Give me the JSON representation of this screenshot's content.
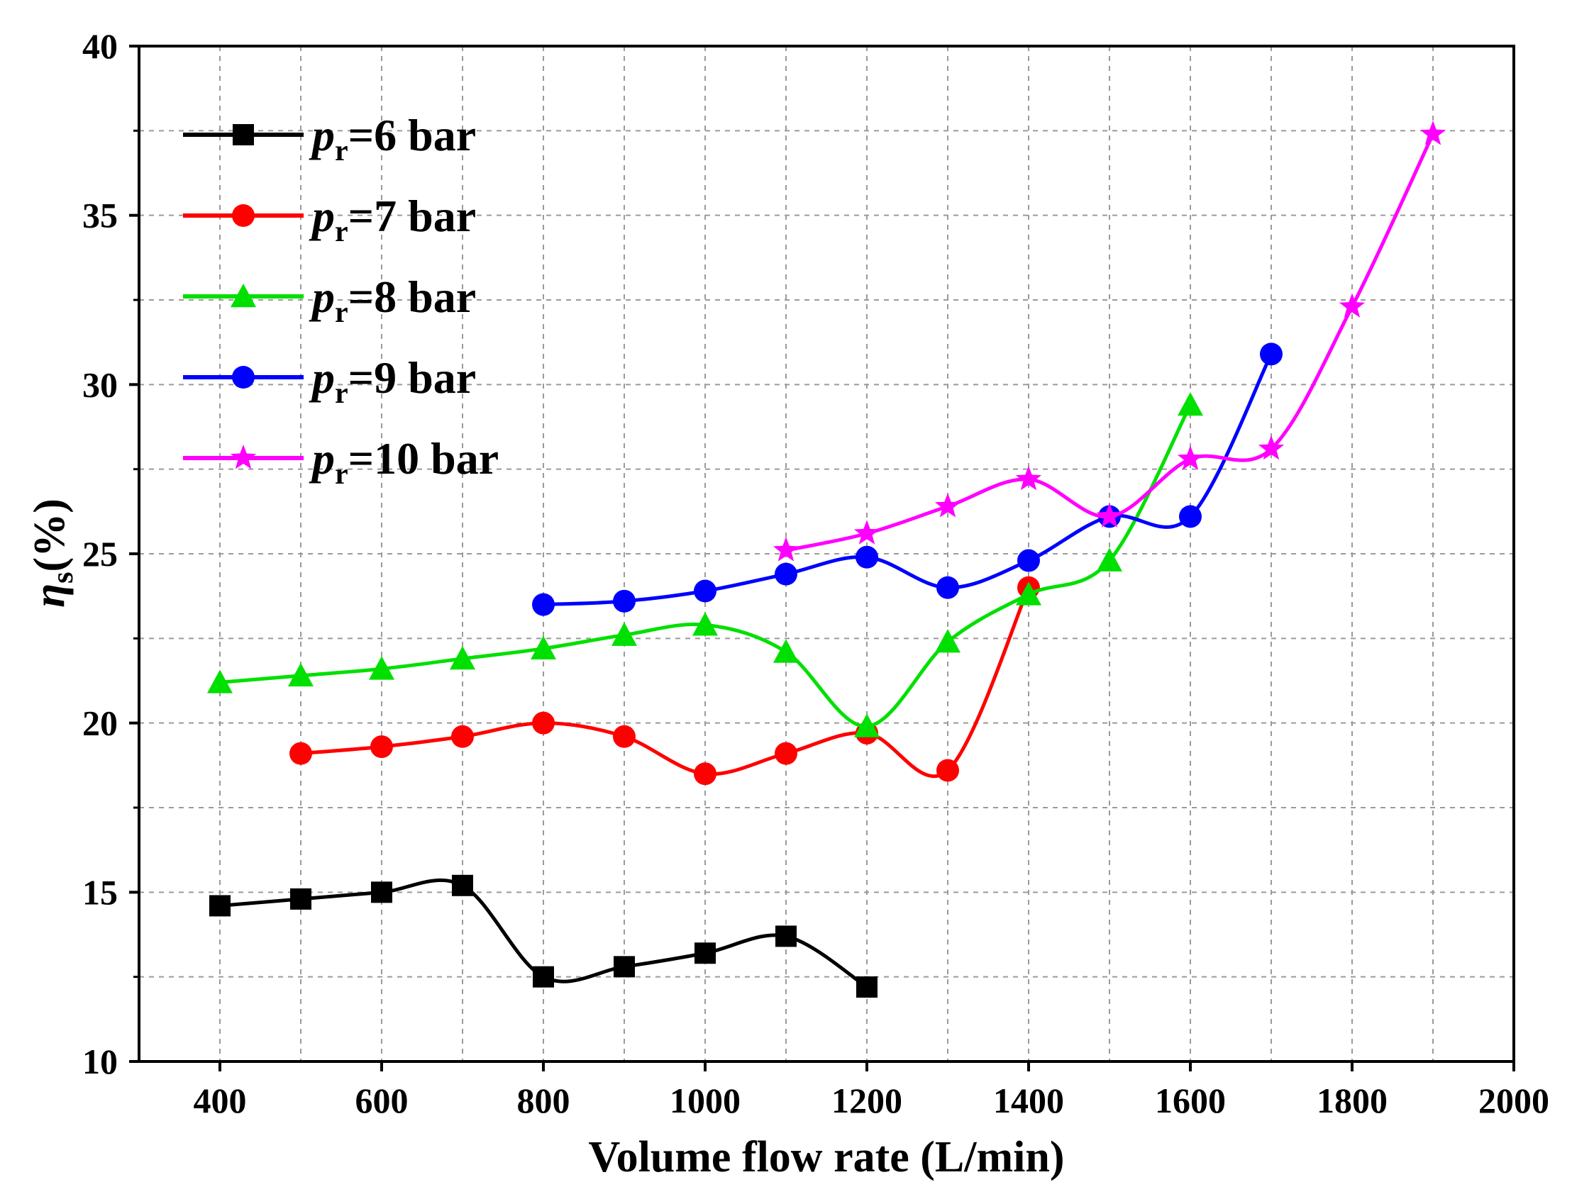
{
  "chart_data": {
    "type": "line",
    "xlabel": "Volume flow rate (L/min)",
    "ylabel_symbol": "η",
    "ylabel_subscript": "s",
    "ylabel_unit": "(%)",
    "xlim": [
      300,
      2000
    ],
    "ylim": [
      10,
      40
    ],
    "xticks": [
      400,
      600,
      800,
      1000,
      1200,
      1400,
      1600,
      1800,
      2000
    ],
    "yticks": [
      10,
      15,
      20,
      25,
      30,
      35,
      40
    ],
    "grid": true,
    "legend_position": "top-left",
    "series": [
      {
        "name": "pr=6 bar",
        "label_symbol": "p",
        "label_subscript": "r",
        "label_value": "=6 bar",
        "color": "#000000",
        "marker": "square",
        "x": [
          400,
          500,
          600,
          700,
          800,
          900,
          1000,
          1100,
          1200
        ],
        "y": [
          14.6,
          14.8,
          15.0,
          15.2,
          12.5,
          12.8,
          13.2,
          13.7,
          12.2
        ]
      },
      {
        "name": "pr=7 bar",
        "label_symbol": "p",
        "label_subscript": "r",
        "label_value": "=7 bar",
        "color": "#ff0000",
        "marker": "circle",
        "x": [
          500,
          600,
          700,
          800,
          900,
          1000,
          1100,
          1200,
          1300,
          1400
        ],
        "y": [
          19.1,
          19.3,
          19.6,
          20.0,
          19.6,
          18.5,
          19.1,
          19.7,
          18.6,
          24.0
        ]
      },
      {
        "name": "pr=8 bar",
        "label_symbol": "p",
        "label_subscript": "r",
        "label_value": "=8 bar",
        "color": "#00e000",
        "marker": "triangle",
        "x": [
          400,
          500,
          600,
          700,
          800,
          900,
          1000,
          1100,
          1200,
          1300,
          1400,
          1500,
          1600
        ],
        "y": [
          21.2,
          21.4,
          21.6,
          21.9,
          22.2,
          22.6,
          22.9,
          22.1,
          19.9,
          22.4,
          23.8,
          24.8,
          29.4
        ]
      },
      {
        "name": "pr=9 bar",
        "label_symbol": "p",
        "label_subscript": "r",
        "label_value": "=9 bar",
        "color": "#0000ff",
        "marker": "circle",
        "x": [
          800,
          900,
          1000,
          1100,
          1200,
          1300,
          1400,
          1500,
          1600,
          1700
        ],
        "y": [
          23.5,
          23.6,
          23.9,
          24.4,
          24.9,
          24.0,
          24.8,
          26.1,
          26.1,
          30.9
        ]
      },
      {
        "name": "pr=10 bar",
        "label_symbol": "p",
        "label_subscript": "r",
        "label_value": "=10 bar",
        "color": "#ff00ff",
        "marker": "star",
        "x": [
          1100,
          1200,
          1300,
          1400,
          1500,
          1600,
          1700,
          1800,
          1900
        ],
        "y": [
          25.1,
          25.6,
          26.4,
          27.2,
          26.1,
          27.8,
          28.1,
          32.3,
          37.4
        ]
      }
    ]
  }
}
